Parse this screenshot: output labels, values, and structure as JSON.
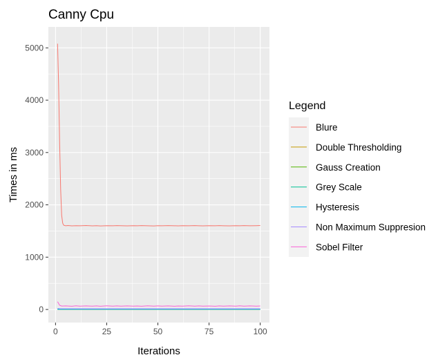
{
  "chart_data": {
    "type": "line",
    "title": "Canny Cpu",
    "xlabel": "Iterations",
    "ylabel": "Times in ms",
    "xlim": [
      -3.5,
      104.5
    ],
    "ylim": [
      -250,
      5400
    ],
    "xticks": [
      0,
      25,
      50,
      75,
      100
    ],
    "xtick_labels": [
      "0",
      "25",
      "50",
      "75",
      "100"
    ],
    "yticks": [
      0,
      1000,
      2000,
      3000,
      4000,
      5000
    ],
    "ytick_labels": [
      "0",
      "1000",
      "2000",
      "3000",
      "4000",
      "5000"
    ],
    "grid": true,
    "legend": {
      "title": "Legend",
      "position": "right"
    },
    "series": [
      {
        "name": "Blure",
        "color": "#F8766D",
        "points": [
          [
            1,
            5080
          ],
          [
            1.5,
            4300
          ],
          [
            2,
            3200
          ],
          [
            2.5,
            2300
          ],
          [
            3,
            1800
          ],
          [
            3.5,
            1650
          ],
          [
            4,
            1610
          ],
          [
            5,
            1600
          ],
          [
            6,
            1605
          ],
          [
            8,
            1598
          ],
          [
            10,
            1602
          ],
          [
            12,
            1600
          ],
          [
            15,
            1604
          ],
          [
            18,
            1598
          ],
          [
            20,
            1601
          ],
          [
            22,
            1597
          ],
          [
            25,
            1602
          ],
          [
            28,
            1599
          ],
          [
            30,
            1603
          ],
          [
            33,
            1600
          ],
          [
            35,
            1598
          ],
          [
            38,
            1602
          ],
          [
            40,
            1599
          ],
          [
            42,
            1603
          ],
          [
            45,
            1600
          ],
          [
            48,
            1597
          ],
          [
            50,
            1602
          ],
          [
            52,
            1599
          ],
          [
            55,
            1603
          ],
          [
            58,
            1600
          ],
          [
            60,
            1598
          ],
          [
            62,
            1602
          ],
          [
            65,
            1599
          ],
          [
            68,
            1603
          ],
          [
            70,
            1600
          ],
          [
            72,
            1598
          ],
          [
            75,
            1602
          ],
          [
            78,
            1599
          ],
          [
            80,
            1603
          ],
          [
            82,
            1600
          ],
          [
            85,
            1598
          ],
          [
            88,
            1602
          ],
          [
            90,
            1600
          ],
          [
            92,
            1603
          ],
          [
            95,
            1599
          ],
          [
            98,
            1601
          ],
          [
            100,
            1604
          ]
        ]
      },
      {
        "name": "Double Thresholding",
        "color": "#C49A00",
        "points": [
          [
            1,
            6
          ],
          [
            25,
            5
          ],
          [
            50,
            5
          ],
          [
            75,
            5
          ],
          [
            100,
            5
          ]
        ]
      },
      {
        "name": "Gauss Creation",
        "color": "#53B400",
        "points": [
          [
            1,
            1
          ],
          [
            25,
            1
          ],
          [
            50,
            1
          ],
          [
            75,
            1
          ],
          [
            100,
            1
          ]
        ]
      },
      {
        "name": "Grey Scale",
        "color": "#00C094",
        "points": [
          [
            1,
            3
          ],
          [
            25,
            3
          ],
          [
            50,
            3
          ],
          [
            75,
            3
          ],
          [
            100,
            3
          ]
        ]
      },
      {
        "name": "Hysteresis",
        "color": "#00B6EB",
        "points": [
          [
            1,
            8
          ],
          [
            25,
            8
          ],
          [
            50,
            8
          ],
          [
            75,
            8
          ],
          [
            100,
            8
          ]
        ]
      },
      {
        "name": "Non Maximum Suppresion",
        "color": "#A58AFF",
        "points": [
          [
            1,
            20
          ],
          [
            2,
            15
          ],
          [
            25,
            14
          ],
          [
            50,
            14
          ],
          [
            75,
            14
          ],
          [
            100,
            14
          ]
        ]
      },
      {
        "name": "Sobel Filter",
        "color": "#FB61D7",
        "points": [
          [
            1,
            150
          ],
          [
            2,
            80
          ],
          [
            3,
            65
          ],
          [
            5,
            68
          ],
          [
            8,
            62
          ],
          [
            10,
            70
          ],
          [
            12,
            64
          ],
          [
            15,
            69
          ],
          [
            18,
            63
          ],
          [
            20,
            68
          ],
          [
            22,
            62
          ],
          [
            25,
            70
          ],
          [
            28,
            64
          ],
          [
            30,
            68
          ],
          [
            32,
            63
          ],
          [
            35,
            69
          ],
          [
            38,
            64
          ],
          [
            40,
            67
          ],
          [
            42,
            62
          ],
          [
            45,
            70
          ],
          [
            48,
            63
          ],
          [
            50,
            68
          ],
          [
            52,
            64
          ],
          [
            55,
            69
          ],
          [
            58,
            62
          ],
          [
            60,
            67
          ],
          [
            62,
            64
          ],
          [
            65,
            70
          ],
          [
            68,
            63
          ],
          [
            70,
            68
          ],
          [
            72,
            64
          ],
          [
            75,
            66
          ],
          [
            78,
            62
          ],
          [
            80,
            69
          ],
          [
            82,
            64
          ],
          [
            85,
            68
          ],
          [
            88,
            63
          ],
          [
            90,
            70
          ],
          [
            92,
            64
          ],
          [
            95,
            68
          ],
          [
            98,
            63
          ],
          [
            100,
            67
          ]
        ]
      }
    ]
  }
}
